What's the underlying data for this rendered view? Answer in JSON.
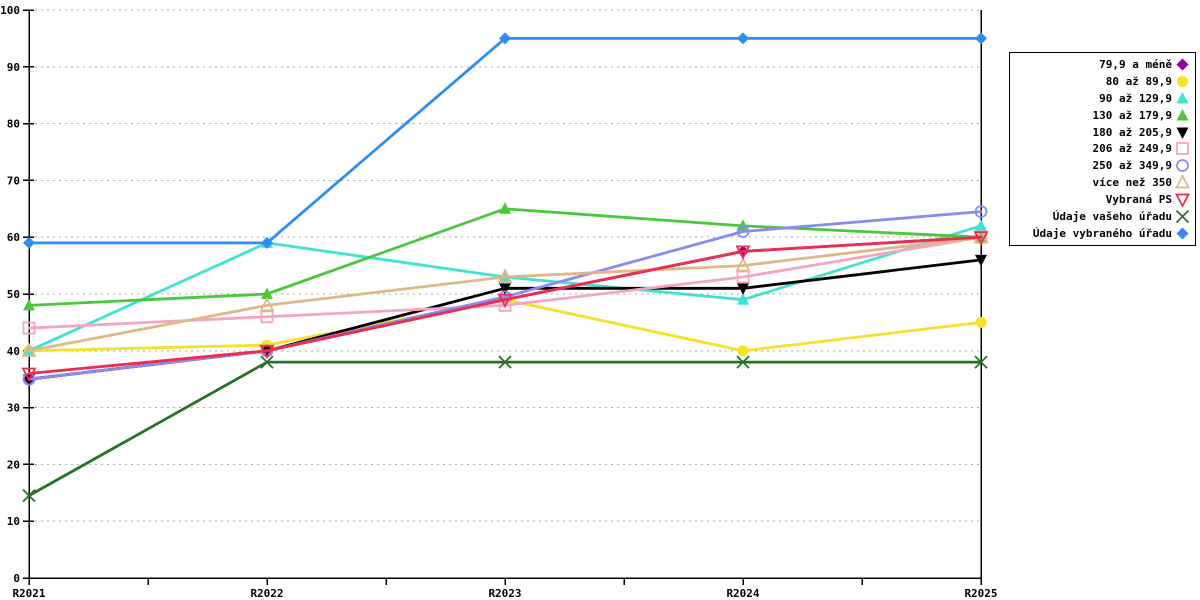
{
  "chart_data": {
    "type": "line",
    "title": "",
    "xlabel": "",
    "ylabel": "",
    "categories": [
      "R2021",
      "R2022",
      "R2023",
      "R2024",
      "R2025"
    ],
    "y_ticks": [
      0,
      10,
      20,
      30,
      40,
      50,
      60,
      70,
      80,
      90,
      100
    ],
    "ylim": [
      0,
      100
    ],
    "grid": "horizontal-dashed",
    "legend_position": "right",
    "colors": {
      "axis": "#000000",
      "gridline": "#aaaaaa",
      "background": "#ffffff"
    },
    "series": [
      {
        "name": "79,9 a méně",
        "color": "#990099",
        "marker": "diamond",
        "values": [
          35,
          40,
          49,
          57.5,
          60
        ]
      },
      {
        "name": "80 až 89,9",
        "color": "#f6e12a",
        "marker": "circle",
        "values": [
          40,
          41,
          49,
          40,
          45
        ]
      },
      {
        "name": "90 až 129,9",
        "color": "#3fe3d2",
        "marker": "triangle-up",
        "values": [
          40,
          59,
          53,
          49,
          62
        ]
      },
      {
        "name": "130 až 179,9",
        "color": "#49c83b",
        "marker": "triangle-up",
        "values": [
          48,
          50,
          65,
          62,
          60
        ]
      },
      {
        "name": "180 až 205,9",
        "color": "#000000",
        "marker": "triangle-down",
        "values": [
          35,
          40,
          51,
          51,
          56
        ]
      },
      {
        "name": "206 až 249,9",
        "color": "#f4a5c1",
        "marker": "square-open",
        "values": [
          44,
          46,
          48,
          53,
          60
        ]
      },
      {
        "name": "250 až 349,9",
        "color": "#8a8aef",
        "marker": "circle-open",
        "values": [
          35,
          40,
          49.5,
          61,
          64.5
        ]
      },
      {
        "name": "více než 350",
        "color": "#deb887",
        "marker": "triangle-up-open",
        "values": [
          40,
          48,
          53,
          55,
          60
        ]
      },
      {
        "name": "Vybraná PS",
        "color": "#ee2d4e",
        "marker": "triangle-down-open",
        "values": [
          36,
          40,
          49,
          57.5,
          60
        ]
      },
      {
        "name": "Údaje vašeho úřadu",
        "color": "#267326",
        "marker": "x-cross",
        "values": [
          14.5,
          38,
          38,
          38,
          38
        ]
      },
      {
        "name": "Údaje vybraného úřadu",
        "color": "#2f8def",
        "marker": "diamond",
        "values": [
          59,
          59,
          95,
          95,
          95
        ]
      }
    ]
  }
}
